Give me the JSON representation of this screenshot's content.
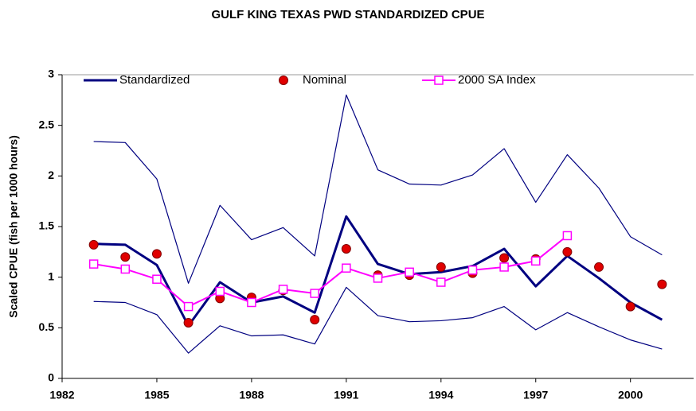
{
  "chart_data": {
    "type": "line",
    "title": "GULF KING TEXAS PWD STANDARDIZED CPUE",
    "y_label": "Scaled CPUE (fish per 1000 hours)",
    "x": [
      1983,
      1984,
      1985,
      1986,
      1987,
      1988,
      1989,
      1990,
      1991,
      1992,
      1993,
      1994,
      1995,
      1996,
      1997,
      1998,
      1999,
      2000,
      2001
    ],
    "series": [
      {
        "name": "Standardized",
        "color": "#000080",
        "line_width": 3,
        "marker": "none",
        "values": [
          1.33,
          1.32,
          1.12,
          0.52,
          0.95,
          0.75,
          0.81,
          0.65,
          1.6,
          1.13,
          1.03,
          1.05,
          1.11,
          1.28,
          0.91,
          1.21,
          0.99,
          0.75,
          0.58
        ]
      },
      {
        "color": "#000080",
        "line_width": 1.2,
        "marker": "none",
        "values": [
          2.34,
          2.33,
          1.97,
          0.94,
          1.71,
          1.37,
          1.49,
          1.21,
          2.8,
          2.06,
          1.92,
          1.91,
          2.01,
          2.27,
          1.74,
          2.21,
          1.88,
          1.4,
          1.22
        ]
      },
      {
        "color": "#000080",
        "line_width": 1.2,
        "marker": "none",
        "values": [
          0.76,
          0.75,
          0.63,
          0.25,
          0.52,
          0.42,
          0.43,
          0.34,
          0.9,
          0.62,
          0.56,
          0.57,
          0.6,
          0.71,
          0.48,
          0.65,
          0.51,
          0.38,
          0.29
        ]
      },
      {
        "name": "Nominal",
        "color": "#e00000",
        "line_width": 0,
        "marker": "circle",
        "values": [
          1.32,
          1.2,
          1.23,
          0.55,
          0.79,
          0.8,
          0.87,
          0.58,
          1.28,
          1.02,
          1.02,
          1.1,
          1.04,
          1.19,
          1.18,
          1.25,
          1.1,
          0.71,
          0.93
        ]
      },
      {
        "name": "2000 SA Index",
        "color": "#ff00ff",
        "line_width": 2,
        "marker": "square",
        "values": [
          1.13,
          1.08,
          0.98,
          0.71,
          0.86,
          0.75,
          0.88,
          0.84,
          1.09,
          0.99,
          1.05,
          0.95,
          1.07,
          1.1,
          1.16,
          1.41,
          null,
          null,
          null
        ]
      }
    ],
    "xlim": [
      1982,
      2002
    ],
    "xticks": [
      1982,
      1985,
      1988,
      1991,
      1994,
      1997,
      2000
    ],
    "ylim": [
      0,
      3
    ],
    "yticks": [
      0,
      0.5,
      1,
      1.5,
      2,
      2.5,
      3
    ],
    "grid": false
  }
}
